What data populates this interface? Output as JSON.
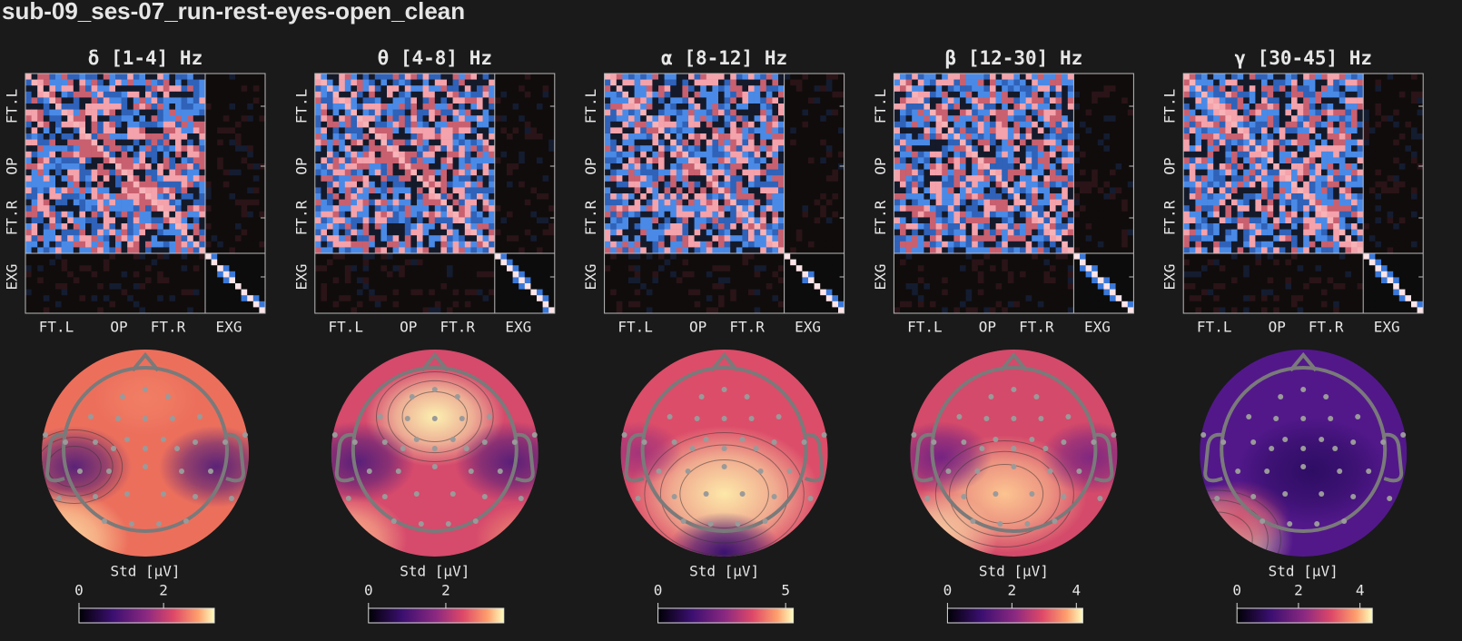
{
  "chart_data": [
    {
      "type": "eeg-panel",
      "title": "δ [1-4] Hz",
      "row_labels": [
        "FT.L",
        "OP",
        "FT.R",
        "EXG"
      ],
      "col_labels": [
        "FT.L",
        "OP",
        "FT.R",
        "EXG"
      ],
      "colorbar": {
        "label": "Std [μV]",
        "lim": [
          0,
          3.2
        ],
        "ticks": [
          0,
          2
        ]
      }
    },
    {
      "type": "eeg-panel",
      "title": "θ [4-8] Hz",
      "row_labels": [
        "FT.L",
        "OP",
        "FT.R",
        "EXG"
      ],
      "col_labels": [
        "FT.L",
        "OP",
        "FT.R",
        "EXG"
      ],
      "colorbar": {
        "label": "Std [μV]",
        "lim": [
          0,
          3.5
        ],
        "ticks": [
          0,
          2
        ]
      }
    },
    {
      "type": "eeg-panel",
      "title": "α [8-12] Hz",
      "row_labels": [
        "FT.L",
        "OP",
        "FT.R",
        "EXG"
      ],
      "col_labels": [
        "FT.L",
        "OP",
        "FT.R",
        "EXG"
      ],
      "colorbar": {
        "label": "Std [μV]",
        "lim": [
          0,
          5.3
        ],
        "ticks": [
          0,
          5
        ]
      }
    },
    {
      "type": "eeg-panel",
      "title": "β [12-30] Hz",
      "row_labels": [
        "FT.L",
        "OP",
        "FT.R",
        "EXG"
      ],
      "col_labels": [
        "FT.L",
        "OP",
        "FT.R",
        "EXG"
      ],
      "colorbar": {
        "label": "Std [μV]",
        "lim": [
          0,
          4.2
        ],
        "ticks": [
          0,
          2,
          4
        ]
      }
    },
    {
      "type": "eeg-panel",
      "title": "γ [30-45] Hz",
      "row_labels": [
        "FT.L",
        "OP",
        "FT.R",
        "EXG"
      ],
      "col_labels": [
        "FT.L",
        "OP",
        "FT.R",
        "EXG"
      ],
      "colorbar": {
        "label": "Std [μV]",
        "lim": [
          0,
          4.4
        ],
        "ticks": [
          0,
          2,
          4
        ]
      }
    }
  ],
  "figure_title": "sub-09_ses-07_run-rest-eyes-open_clean"
}
